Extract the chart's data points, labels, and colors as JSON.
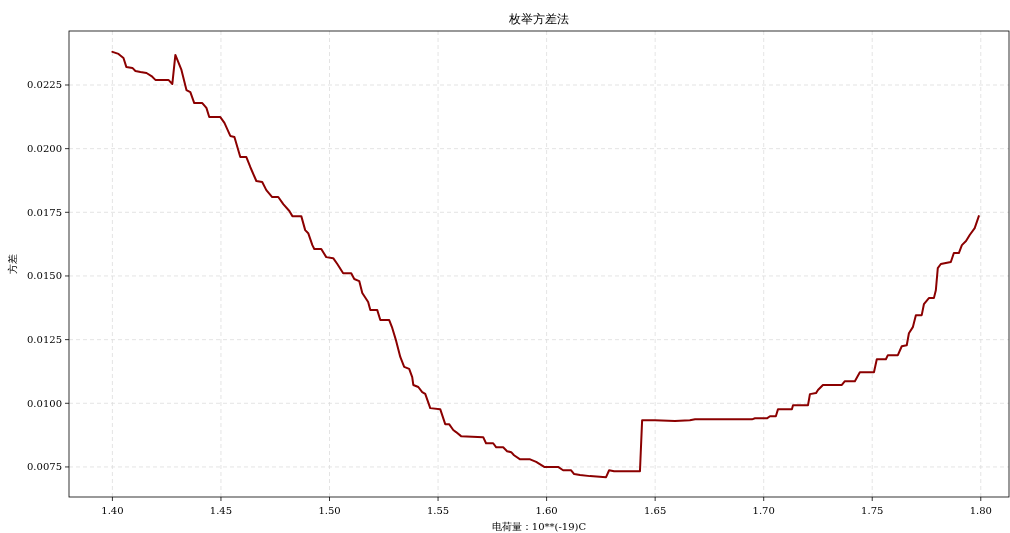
{
  "chart_data": {
    "type": "line",
    "title": "枚举方差法",
    "xlabel": "电荷量：10**(-19)C",
    "ylabel": "方差",
    "color": "#8b0000",
    "grid": true,
    "line_style": "solid",
    "xlim": [
      1.38,
      1.813
    ],
    "ylim": [
      0.00632,
      0.02462
    ],
    "xticks": [
      {
        "value": 1.4,
        "label": "1.40"
      },
      {
        "value": 1.45,
        "label": "1.45"
      },
      {
        "value": 1.5,
        "label": "1.50"
      },
      {
        "value": 1.55,
        "label": "1.55"
      },
      {
        "value": 1.6,
        "label": "1.60"
      },
      {
        "value": 1.65,
        "label": "1.65"
      },
      {
        "value": 1.7,
        "label": "1.70"
      },
      {
        "value": 1.75,
        "label": "1.75"
      },
      {
        "value": 1.8,
        "label": "1.80"
      }
    ],
    "yticks": [
      0.0075,
      {
        "value": 0.01,
        "label": "0.0100"
      },
      0.0125,
      {
        "value": 0.015,
        "label": "0.0150"
      },
      0.0175,
      {
        "value": 0.02,
        "label": "0.0200"
      },
      0.0225
    ],
    "x": [
      1.4,
      1.4028,
      1.4051,
      1.4064,
      1.4092,
      1.4106,
      1.4129,
      1.4157,
      1.418,
      1.4198,
      1.4258,
      1.4276,
      1.429,
      1.4318,
      1.4341,
      1.4359,
      1.4377,
      1.4414,
      1.4433,
      1.4446,
      1.4497,
      1.4516,
      1.4543,
      1.4562,
      1.4589,
      1.4617,
      1.4635,
      1.4663,
      1.469,
      1.4709,
      1.4736,
      1.4764,
      1.4787,
      1.4815,
      1.4829,
      1.487,
      1.4888,
      1.4902,
      1.4921,
      1.493,
      1.4962,
      1.4985,
      1.5017,
      1.5036,
      1.5063,
      1.51,
      1.5114,
      1.5137,
      1.5151,
      1.5178,
      1.5188,
      1.522,
      1.5234,
      1.5275,
      1.5289,
      1.5307,
      1.5326,
      1.5344,
      1.5367,
      1.5381,
      1.5386,
      1.5409,
      1.5427,
      1.5441,
      1.5464,
      1.551,
      1.5533,
      1.5551,
      1.557,
      1.5583,
      1.5606,
      1.5708,
      1.5721,
      1.5754,
      1.5768,
      1.58,
      1.5818,
      1.5837,
      1.585,
      1.5878,
      1.5924,
      1.5952,
      1.5989,
      1.6053,
      1.6076,
      1.6113,
      1.6127,
      1.6154,
      1.62,
      1.6274,
      1.6288,
      1.6311,
      1.643,
      1.644,
      1.6499,
      1.6591,
      1.666,
      1.6684,
      1.6946,
      1.696,
      1.7015,
      1.7029,
      1.7056,
      1.7066,
      1.713,
      1.7135,
      1.7204,
      1.7213,
      1.7241,
      1.725,
      1.7273,
      1.736,
      1.7374,
      1.742,
      1.7443,
      1.7508,
      1.7521,
      1.7563,
      1.7572,
      1.7618,
      1.7636,
      1.7659,
      1.7669,
      1.7687,
      1.7701,
      1.7728,
      1.7738,
      1.7761,
      1.7784,
      1.7793,
      1.7802,
      1.7816,
      1.7862,
      1.7876,
      1.7899,
      1.7913,
      1.7932,
      1.7949,
      1.7972,
      1.7991
    ],
    "values": [
      0.0238,
      0.02372,
      0.02356,
      0.02321,
      0.02317,
      0.02305,
      0.02301,
      0.02297,
      0.02285,
      0.0227,
      0.0227,
      0.02254,
      0.02368,
      0.02309,
      0.0223,
      0.02222,
      0.02179,
      0.02179,
      0.0216,
      0.02124,
      0.02124,
      0.02101,
      0.0205,
      0.02046,
      0.01967,
      0.01967,
      0.01928,
      0.01873,
      0.01869,
      0.01837,
      0.0181,
      0.0181,
      0.01782,
      0.01755,
      0.01735,
      0.01735,
      0.0168,
      0.01668,
      0.01621,
      0.01606,
      0.01606,
      0.01574,
      0.0157,
      0.01547,
      0.01511,
      0.01511,
      0.01488,
      0.0148,
      0.01433,
      0.01398,
      0.01366,
      0.01366,
      0.01327,
      0.01327,
      0.01296,
      0.01245,
      0.01182,
      0.01143,
      0.01135,
      0.01103,
      0.01072,
      0.01064,
      0.01044,
      0.01037,
      0.00981,
      0.00977,
      0.00918,
      0.00918,
      0.00895,
      0.00887,
      0.00871,
      0.00867,
      0.00843,
      0.00843,
      0.00827,
      0.00827,
      0.00812,
      0.00808,
      0.00796,
      0.0078,
      0.0078,
      0.0077,
      0.0075,
      0.0075,
      0.00737,
      0.00737,
      0.00722,
      0.00718,
      0.00714,
      0.0071,
      0.00737,
      0.00733,
      0.00733,
      0.00933,
      0.00933,
      0.0093,
      0.00933,
      0.00937,
      0.00937,
      0.00941,
      0.00941,
      0.00949,
      0.00949,
      0.00977,
      0.00977,
      0.00992,
      0.00992,
      0.01036,
      0.0104,
      0.01052,
      0.01072,
      0.01072,
      0.01087,
      0.01087,
      0.01122,
      0.01122,
      0.01173,
      0.01173,
      0.01189,
      0.01189,
      0.01224,
      0.01228,
      0.01275,
      0.01299,
      0.01346,
      0.01346,
      0.01389,
      0.01413,
      0.01413,
      0.01444,
      0.01531,
      0.01547,
      0.01555,
      0.0159,
      0.0159,
      0.01621,
      0.01637,
      0.01661,
      0.01688,
      0.01735
    ]
  }
}
